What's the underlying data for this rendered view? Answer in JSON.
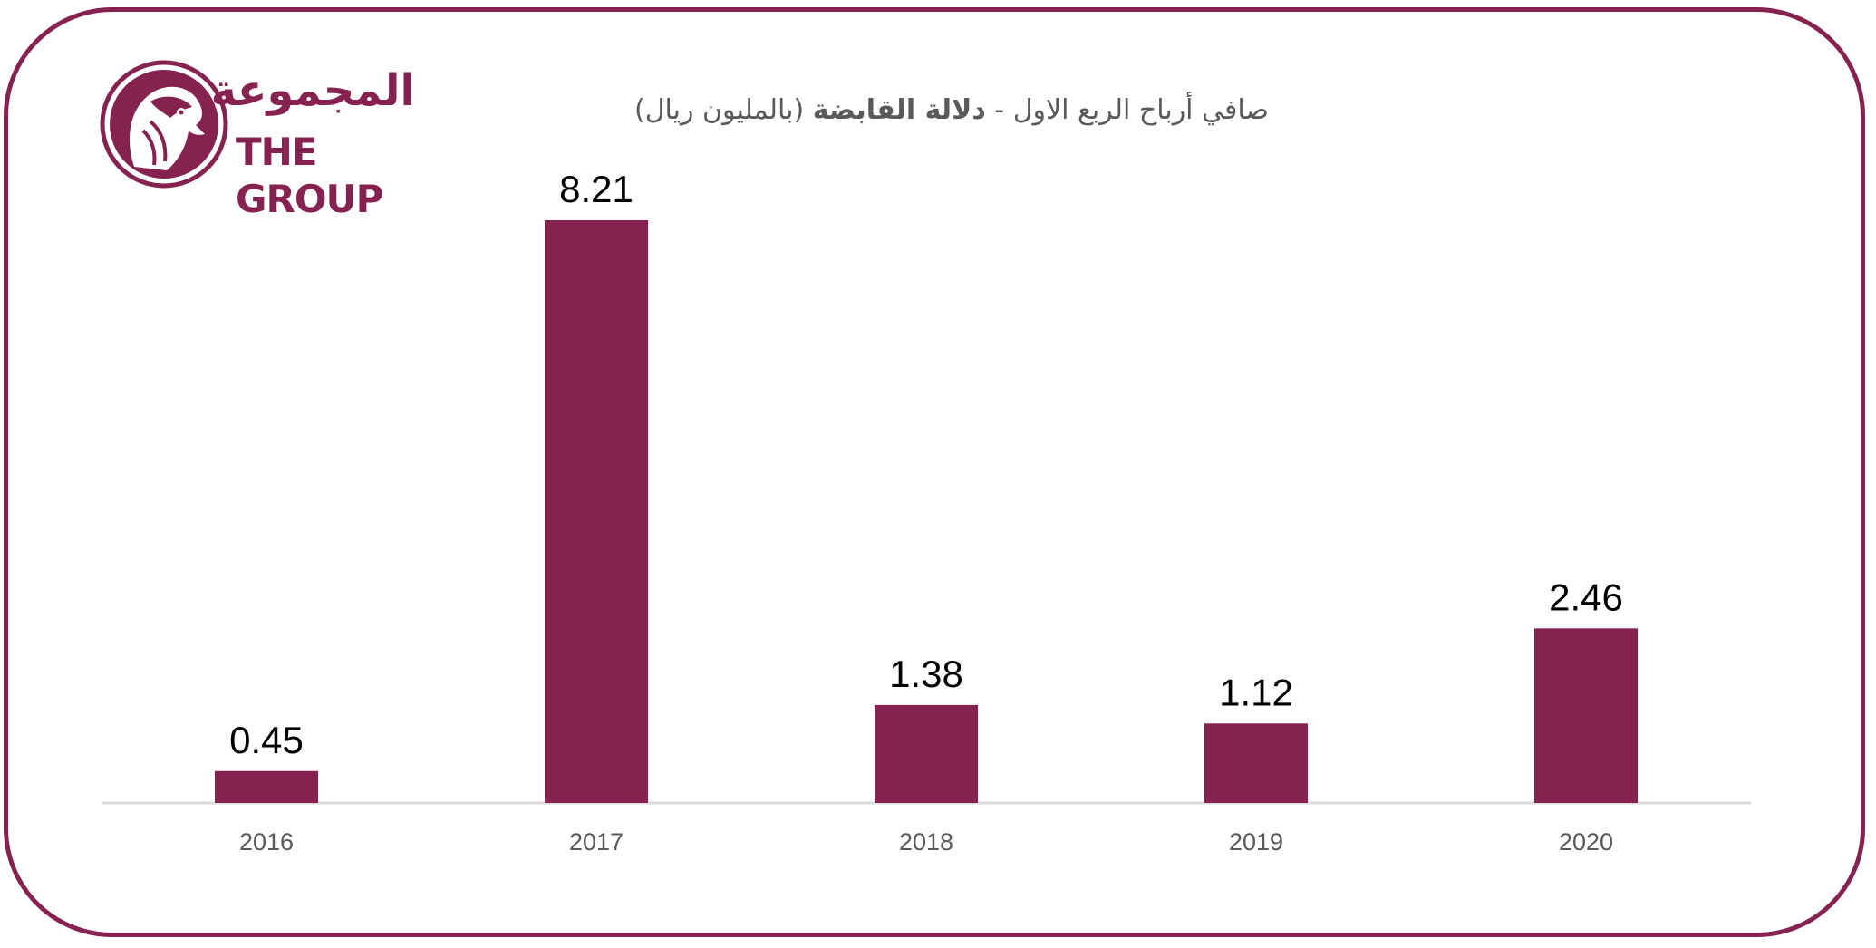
{
  "logo": {
    "name_ar": "المجموعة",
    "name_en": "THE GROUP"
  },
  "colors": {
    "brand": "#86224f",
    "bar": "#86224f",
    "axis": "#d9d9d9",
    "tick_text": "#595959",
    "label_text": "#000000"
  },
  "chart_data": {
    "type": "bar",
    "title_part1": "صافي أرباح الربع الاول - ",
    "title_part2": "دلالة القابضة",
    "title_part3": " (بالمليون ريال)",
    "categories": [
      "2016",
      "2017",
      "2018",
      "2019",
      "2020"
    ],
    "values": [
      0.45,
      8.21,
      1.38,
      1.12,
      2.46
    ],
    "value_labels": [
      "0.45",
      "8.21",
      "1.38",
      "1.12",
      "2.46"
    ],
    "xlabel": "",
    "ylabel": "",
    "ylim": [
      0,
      8.21
    ],
    "grid": false,
    "legend": "none"
  }
}
